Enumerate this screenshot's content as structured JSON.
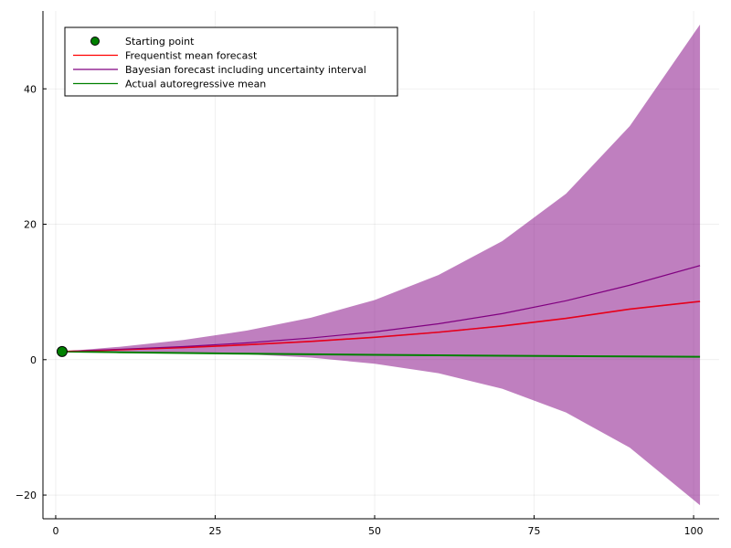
{
  "chart_data": {
    "type": "line",
    "title": "",
    "xlabel": "",
    "ylabel": "",
    "xlim": [
      -2,
      104
    ],
    "ylim": [
      -23.5,
      51.5
    ],
    "grid": true,
    "legend_position": "top-left",
    "x_ticks": [
      {
        "value": 0,
        "label": "0"
      },
      {
        "value": 25,
        "label": "25"
      },
      {
        "value": 50,
        "label": "50"
      },
      {
        "value": 75,
        "label": "75"
      },
      {
        "value": 100,
        "label": "100"
      }
    ],
    "y_ticks": [
      {
        "value": -20,
        "label": "−20"
      },
      {
        "value": 0,
        "label": "0"
      },
      {
        "value": 20,
        "label": "20"
      },
      {
        "value": 40,
        "label": "40"
      }
    ],
    "series": [
      {
        "name": "Starting point",
        "kind": "scatter",
        "color": "#008000",
        "x": [
          1
        ],
        "y": [
          1.2
        ]
      },
      {
        "name": "Frequentist mean forecast",
        "kind": "line",
        "color": "#ff0000",
        "x": [
          1,
          10,
          20,
          30,
          40,
          50,
          60,
          70,
          80,
          90,
          101
        ],
        "y": [
          1.2,
          1.46,
          1.79,
          2.2,
          2.7,
          3.3,
          4.05,
          4.97,
          6.1,
          7.47,
          8.6
        ]
      },
      {
        "name": "Bayesian forecast including uncertainty interval",
        "kind": "band",
        "color": "#800080",
        "x": [
          1,
          10,
          20,
          30,
          40,
          50,
          60,
          70,
          80,
          90,
          101
        ],
        "y": [
          1.2,
          1.52,
          1.93,
          2.48,
          3.2,
          4.1,
          5.3,
          6.8,
          8.7,
          11.0,
          13.9
        ],
        "lower": [
          1.2,
          1.1,
          1.0,
          0.8,
          0.3,
          -0.6,
          -2.0,
          -4.3,
          -7.8,
          -13.0,
          -21.5
        ],
        "upper": [
          1.2,
          1.9,
          2.9,
          4.3,
          6.2,
          8.8,
          12.5,
          17.5,
          24.5,
          34.5,
          49.5
        ]
      },
      {
        "name": "Actual autoregressive mean",
        "kind": "line",
        "color": "#008000",
        "x": [
          1,
          10,
          20,
          30,
          40,
          50,
          60,
          70,
          80,
          90,
          101
        ],
        "y": [
          1.2,
          1.09,
          0.98,
          0.88,
          0.79,
          0.72,
          0.64,
          0.58,
          0.52,
          0.47,
          0.42
        ]
      }
    ]
  }
}
